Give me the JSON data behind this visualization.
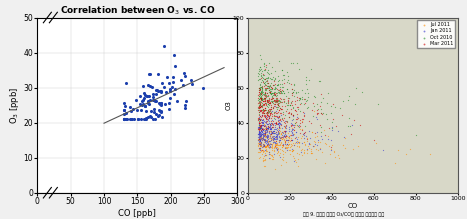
{
  "left_title": "Correlation between O$_3$ vs. CO",
  "left_xlabel": "CO [ppb]",
  "left_ylabel": "O$_3$ [ppb]",
  "left_xlim": [
    0,
    300
  ],
  "left_ylim": [
    0,
    50
  ],
  "left_xticks": [
    0,
    50,
    100,
    150,
    200,
    250,
    300
  ],
  "left_yticks": [
    0,
    10,
    20,
    30,
    40,
    50
  ],
  "left_dot_color": "#1c3fad",
  "left_line_color": "#555555",
  "right_xlabel": "CO",
  "right_ylabel": "O3",
  "right_bg_color": "#c8c8b8",
  "right_panel_bg": "#d8d8c8",
  "legend_labels": [
    "Oct 2010",
    "Jan 2011",
    "Mar 2011",
    "Jul 2011"
  ],
  "legend_colors": [
    "#228B22",
    "#3333cc",
    "#cc0000",
    "#ff8c00"
  ],
  "right_caption": "그림 9. 배경도 시기의 O₃/CO를 활용한 시기판단 분석"
}
